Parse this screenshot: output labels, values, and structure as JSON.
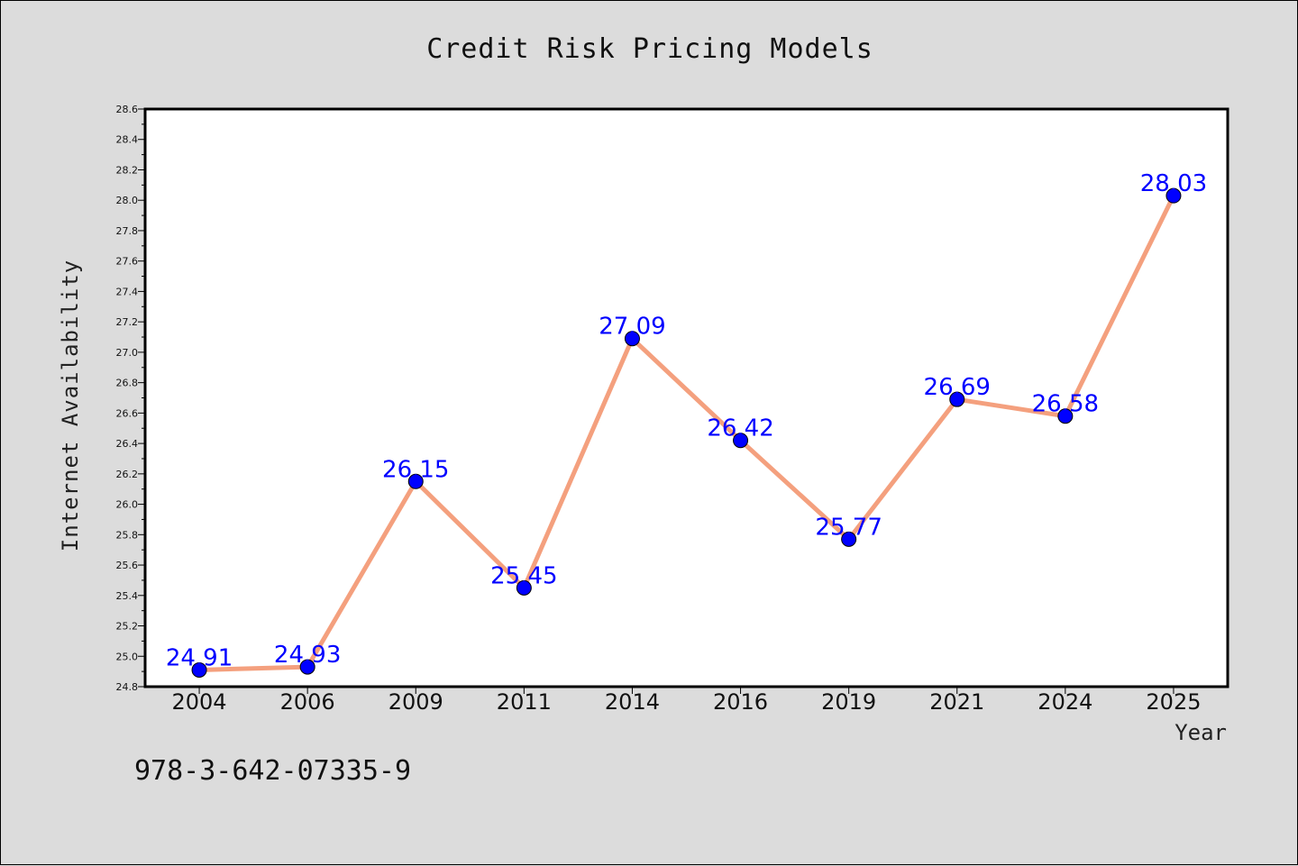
{
  "chart_data": {
    "type": "line",
    "title": "Credit Risk Pricing Models",
    "xlabel": "Year",
    "ylabel": "Internet Availability",
    "categories": [
      "2004",
      "2006",
      "2009",
      "2011",
      "2014",
      "2016",
      "2019",
      "2021",
      "2024",
      "2025"
    ],
    "values": [
      24.91,
      24.93,
      26.15,
      25.45,
      27.09,
      26.42,
      25.77,
      26.69,
      26.58,
      28.03
    ],
    "ylim": [
      24.8,
      28.6
    ],
    "yticks": [
      "24.8",
      "25.0",
      "25.2",
      "25.4",
      "25.6",
      "25.8",
      "26.0",
      "26.2",
      "26.4",
      "26.6",
      "26.8",
      "27.0",
      "27.2",
      "27.4",
      "27.6",
      "27.8",
      "28.0",
      "28.2",
      "28.4",
      "28.6"
    ],
    "grid": false,
    "data_labels": [
      "24.91",
      "24.93",
      "26.15",
      "25.45",
      "27.09",
      "26.42",
      "25.77",
      "26.69",
      "26.58",
      "28.03"
    ],
    "colors": {
      "line": "#f4a07e",
      "marker": "#0000ff",
      "label": "#0000ff",
      "background": "#dcdcdc",
      "plot_background": "#ffffff"
    }
  },
  "footer_text": "978-3-642-07335-9"
}
